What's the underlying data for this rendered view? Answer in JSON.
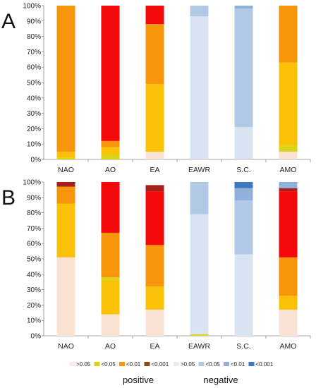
{
  "colors": {
    "pos_gt005": "#fbe3d3",
    "pos_lt005": "#d9d31a",
    "pos_lt001": "#fbc107",
    "pos_lt0001": "#f7950b",
    "pos_lt0001_extra": "#f40a0a",
    "pos_lt0001_dark": "#a8201a",
    "neg_gt005": "#d8e4f2",
    "neg_lt005": "#b2c9e6",
    "neg_lt001": "#8fb1dc",
    "neg_lt0001": "#3f78c1"
  },
  "legend": {
    "items": [
      {
        "label": ">0.05",
        "color": "#fce8f2"
      },
      {
        "label": "<0.05",
        "color": "#d9d31a"
      },
      {
        "label": "<0.01",
        "color": "#f7950b"
      },
      {
        "label": "<0.001",
        "color": "#8b4a12"
      },
      {
        "label": ">0.05",
        "color": "#e4ecf6"
      },
      {
        "label": "<0.05",
        "color": "#b2c9e6"
      },
      {
        "label": "<0.01",
        "color": "#8fb1dc"
      },
      {
        "label": "<0.001",
        "color": "#3f78c1"
      }
    ],
    "groups": [
      "positive",
      "negative"
    ]
  },
  "chart_data": [
    {
      "panel": "A",
      "type": "bar",
      "stacked": true,
      "categories": [
        "NAO",
        "AO",
        "EA",
        "EAWR",
        "S.C.",
        "AMO"
      ],
      "y_ticks": [
        "0%",
        "10%",
        "20%",
        "30%",
        "40%",
        "50%",
        "60%",
        "70%",
        "80%",
        "90%",
        "100%"
      ],
      "ylim": [
        0,
        100
      ],
      "bars": [
        [
          {
            "v": 1,
            "c": "pos_lt005"
          },
          {
            "v": 4,
            "c": "pos_lt001"
          },
          {
            "v": 95,
            "c": "pos_lt0001"
          }
        ],
        [
          {
            "v": 3,
            "c": "pos_lt005"
          },
          {
            "v": 5,
            "c": "pos_lt001"
          },
          {
            "v": 4,
            "c": "pos_lt0001"
          },
          {
            "v": 88,
            "c": "pos_lt0001_extra"
          }
        ],
        [
          {
            "v": 5,
            "c": "pos_gt005"
          },
          {
            "v": 44,
            "c": "pos_lt001"
          },
          {
            "v": 39,
            "c": "pos_lt0001"
          },
          {
            "v": 12,
            "c": "pos_lt0001_extra"
          }
        ],
        [
          {
            "v": 93,
            "c": "neg_gt005"
          },
          {
            "v": 7,
            "c": "neg_lt005"
          }
        ],
        [
          {
            "v": 21,
            "c": "neg_gt005"
          },
          {
            "v": 77,
            "c": "neg_lt005"
          },
          {
            "v": 2,
            "c": "neg_lt001"
          }
        ],
        [
          {
            "v": 5,
            "c": "pos_gt005"
          },
          {
            "v": 4,
            "c": "pos_lt005"
          },
          {
            "v": 54,
            "c": "pos_lt001"
          },
          {
            "v": 37,
            "c": "pos_lt0001"
          }
        ]
      ]
    },
    {
      "panel": "B",
      "type": "bar",
      "stacked": true,
      "categories": [
        "NAO",
        "AO",
        "EA",
        "EAWR",
        "S.C.",
        "AMO"
      ],
      "y_ticks": [
        "0%",
        "10%",
        "20%",
        "30%",
        "40%",
        "50%",
        "60%",
        "70%",
        "80%",
        "90%",
        "100%"
      ],
      "ylim": [
        0,
        100
      ],
      "bars": [
        [
          {
            "v": 51,
            "c": "pos_gt005"
          },
          {
            "v": 35,
            "c": "pos_lt001"
          },
          {
            "v": 11,
            "c": "pos_lt0001"
          },
          {
            "v": 3,
            "c": "pos_lt0001_dark"
          }
        ],
        [
          {
            "v": 14,
            "c": "pos_gt005"
          },
          {
            "v": 22,
            "c": "pos_lt001"
          },
          {
            "v": 2,
            "c": "pos_lt005"
          },
          {
            "v": 4,
            "c": "pos_lt0001"
          },
          {
            "v": 25,
            "c": "pos_lt0001"
          },
          {
            "v": 33,
            "c": "pos_lt0001_extra"
          }
        ],
        [
          {
            "v": 17,
            "c": "pos_gt005"
          },
          {
            "v": 15,
            "c": "pos_lt001"
          },
          {
            "v": 27,
            "c": "pos_lt0001"
          },
          {
            "v": 35,
            "c": "pos_lt0001_extra"
          },
          {
            "v": 4,
            "c": "pos_lt0001_dark"
          }
        ],
        [
          {
            "v": 1,
            "c": "pos_lt005"
          },
          {
            "v": 1,
            "c": "neg_gt005"
          },
          {
            "v": 77,
            "c": "neg_gt005"
          },
          {
            "v": 21,
            "c": "neg_lt005"
          }
        ],
        [
          {
            "v": 53,
            "c": "neg_gt005"
          },
          {
            "v": 35,
            "c": "neg_lt005"
          },
          {
            "v": 8,
            "c": "neg_lt001"
          },
          {
            "v": 4,
            "c": "neg_lt0001"
          }
        ],
        [
          {
            "v": 17,
            "c": "pos_gt005"
          },
          {
            "v": 9,
            "c": "pos_lt001"
          },
          {
            "v": 25,
            "c": "pos_lt0001"
          },
          {
            "v": 43,
            "c": "pos_lt0001_extra"
          },
          {
            "v": 2,
            "c": "pos_lt0001_dark"
          },
          {
            "v": 4,
            "c": "neg_lt001"
          }
        ]
      ]
    }
  ]
}
